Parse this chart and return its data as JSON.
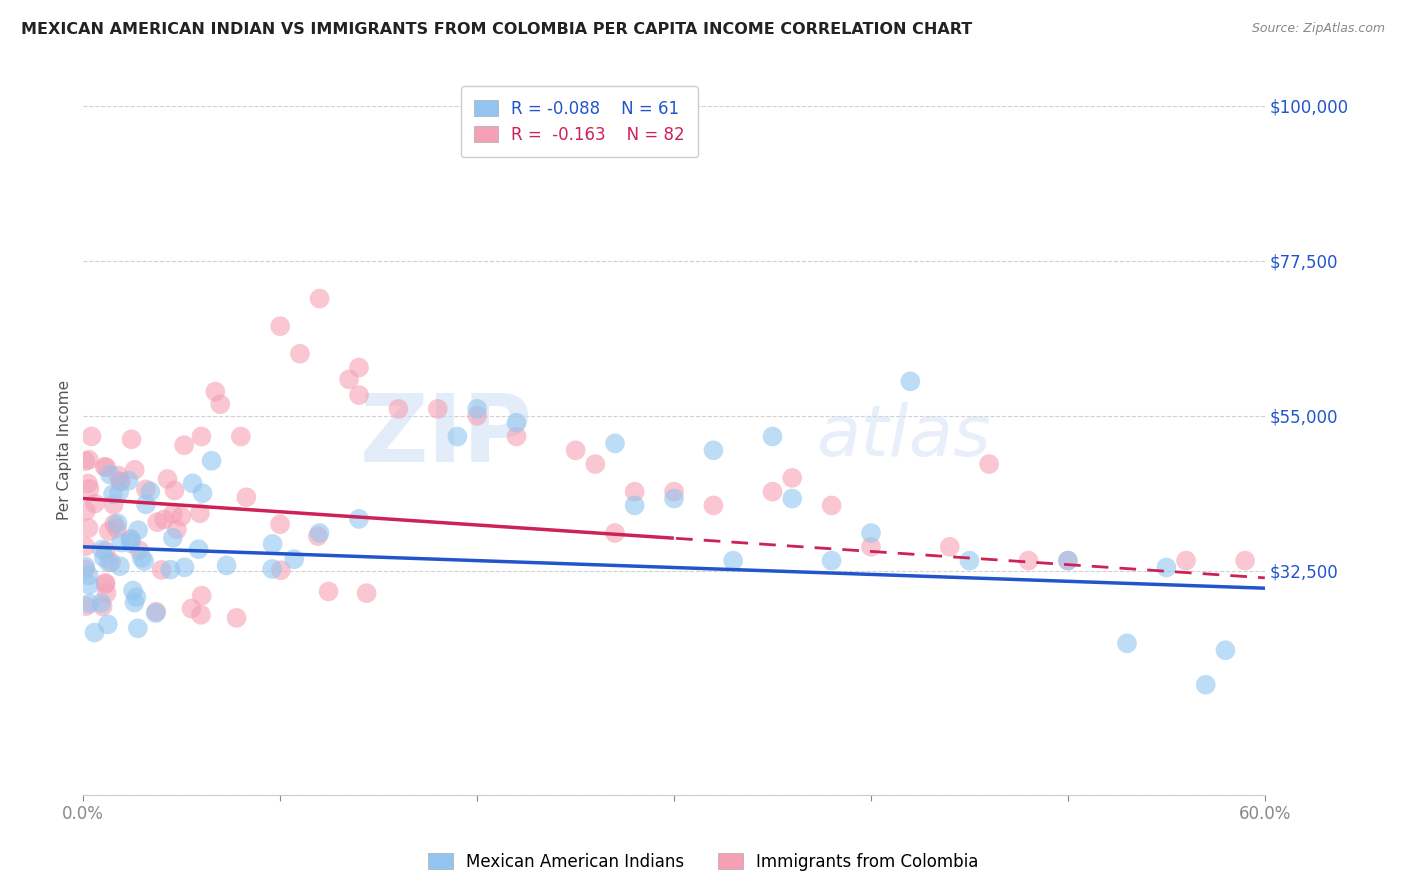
{
  "title": "MEXICAN AMERICAN INDIAN VS IMMIGRANTS FROM COLOMBIA PER CAPITA INCOME CORRELATION CHART",
  "source": "Source: ZipAtlas.com",
  "xlabel": "",
  "ylabel": "Per Capita Income",
  "xlim": [
    0,
    0.6
  ],
  "ylim": [
    0,
    100000
  ],
  "yticks": [
    0,
    32500,
    55000,
    77500,
    100000
  ],
  "ytick_labels": [
    "",
    "$32,500",
    "$55,000",
    "$77,500",
    "$100,000"
  ],
  "xticks": [
    0.0,
    0.1,
    0.2,
    0.3,
    0.4,
    0.5,
    0.6
  ],
  "series1_label": "Mexican American Indians",
  "series2_label": "Immigrants from Colombia",
  "color1": "#92c5f0",
  "color2": "#f5a0b5",
  "line_color1": "#2255cc",
  "line_color2": "#cc2255",
  "background_color": "#ffffff",
  "title_fontsize": 11.5,
  "R1": -0.088,
  "N1": 61,
  "R2": -0.163,
  "N2": 82,
  "line1_x0": 0.0,
  "line1_y0": 36000,
  "line1_x1": 0.6,
  "line1_y1": 30000,
  "line2_x0": 0.0,
  "line2_y0": 43000,
  "line2_x1": 0.6,
  "line2_y1": 31500,
  "line2_solid_end": 0.3,
  "wm_zip_color": "#c8ddf5",
  "wm_atlas_color": "#c8ddf5"
}
